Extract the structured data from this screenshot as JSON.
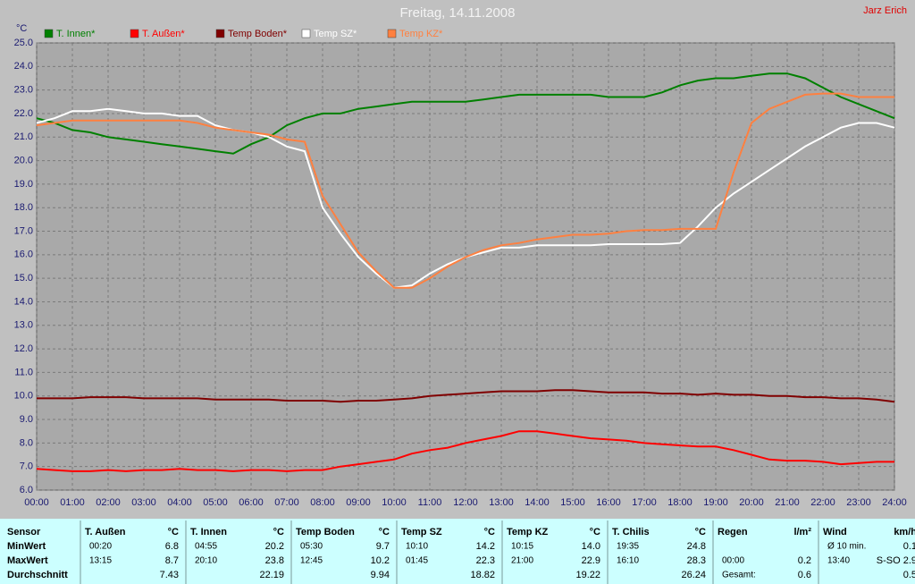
{
  "chart_data": {
    "type": "line",
    "title": "Freitag, 14.11.2008",
    "author": "Jarz Erich",
    "y_label": "°C",
    "x": [
      0,
      0.5,
      1,
      1.5,
      2,
      2.5,
      3,
      3.5,
      4,
      4.5,
      5,
      5.5,
      6,
      6.5,
      7,
      7.5,
      8,
      8.5,
      9,
      9.5,
      10,
      10.5,
      11,
      11.5,
      12,
      12.5,
      13,
      13.5,
      14,
      14.5,
      15,
      15.5,
      16,
      16.5,
      17,
      17.5,
      18,
      18.5,
      19,
      19.5,
      20,
      20.5,
      21,
      21.5,
      22,
      22.5,
      23,
      23.5,
      24
    ],
    "series": [
      {
        "name": "T. Innen*",
        "color": "#008000",
        "values": [
          21.8,
          21.6,
          21.3,
          21.2,
          21.0,
          20.9,
          20.8,
          20.7,
          20.6,
          20.5,
          20.4,
          20.3,
          20.7,
          21.0,
          21.5,
          21.8,
          22.0,
          22.0,
          22.2,
          22.3,
          22.4,
          22.5,
          22.5,
          22.5,
          22.5,
          22.6,
          22.7,
          22.8,
          22.8,
          22.8,
          22.8,
          22.8,
          22.7,
          22.7,
          22.7,
          22.9,
          23.2,
          23.4,
          23.5,
          23.5,
          23.6,
          23.7,
          23.7,
          23.5,
          23.1,
          22.7,
          22.4,
          22.1,
          21.8
        ]
      },
      {
        "name": "T. Außen*",
        "color": "#ff0000",
        "values": [
          6.9,
          6.85,
          6.8,
          6.8,
          6.85,
          6.8,
          6.85,
          6.85,
          6.9,
          6.85,
          6.85,
          6.8,
          6.85,
          6.85,
          6.8,
          6.85,
          6.85,
          7.0,
          7.1,
          7.2,
          7.3,
          7.55,
          7.7,
          7.8,
          8.0,
          8.15,
          8.3,
          8.5,
          8.5,
          8.4,
          8.3,
          8.2,
          8.15,
          8.1,
          8.0,
          7.95,
          7.9,
          7.85,
          7.85,
          7.7,
          7.5,
          7.3,
          7.25,
          7.25,
          7.2,
          7.1,
          7.15,
          7.2,
          7.2
        ]
      },
      {
        "name": "Temp Boden*",
        "color": "#800000",
        "values": [
          9.9,
          9.9,
          9.9,
          9.95,
          9.95,
          9.95,
          9.9,
          9.9,
          9.9,
          9.9,
          9.85,
          9.85,
          9.85,
          9.85,
          9.8,
          9.8,
          9.8,
          9.75,
          9.8,
          9.8,
          9.85,
          9.9,
          10.0,
          10.05,
          10.1,
          10.15,
          10.2,
          10.2,
          10.2,
          10.25,
          10.25,
          10.2,
          10.15,
          10.15,
          10.15,
          10.1,
          10.1,
          10.05,
          10.1,
          10.05,
          10.05,
          10.0,
          10.0,
          9.95,
          9.95,
          9.9,
          9.9,
          9.85,
          9.75
        ]
      },
      {
        "name": "Temp SZ*",
        "color": "#ffffff",
        "values": [
          21.6,
          21.8,
          22.1,
          22.1,
          22.2,
          22.1,
          22.0,
          22.0,
          21.9,
          21.9,
          21.5,
          21.3,
          21.2,
          21.0,
          20.6,
          20.4,
          18.0,
          16.9,
          15.9,
          15.2,
          14.6,
          14.7,
          15.2,
          15.6,
          15.9,
          16.1,
          16.3,
          16.3,
          16.4,
          16.4,
          16.4,
          16.4,
          16.45,
          16.45,
          16.45,
          16.45,
          16.5,
          17.2,
          18.0,
          18.6,
          19.1,
          19.6,
          20.1,
          20.6,
          21.0,
          21.4,
          21.6,
          21.6,
          21.4
        ]
      },
      {
        "name": "Temp KZ*",
        "color": "#ff8040",
        "values": [
          21.5,
          21.6,
          21.7,
          21.7,
          21.7,
          21.7,
          21.7,
          21.7,
          21.7,
          21.6,
          21.4,
          21.3,
          21.2,
          21.1,
          20.9,
          20.8,
          18.5,
          17.3,
          16.1,
          15.3,
          14.6,
          14.6,
          15.0,
          15.5,
          15.9,
          16.2,
          16.4,
          16.5,
          16.65,
          16.75,
          16.85,
          16.85,
          16.9,
          17.0,
          17.05,
          17.05,
          17.1,
          17.1,
          17.1,
          19.5,
          21.6,
          22.2,
          22.5,
          22.8,
          22.85,
          22.85,
          22.7,
          22.7,
          22.7
        ]
      }
    ],
    "xlim": [
      0,
      24
    ],
    "xticks": [
      {
        "value": 0,
        "label": "00:00"
      },
      {
        "value": 1,
        "label": "01:00"
      },
      {
        "value": 2,
        "label": "02:00"
      },
      {
        "value": 3,
        "label": "03:00"
      },
      {
        "value": 4,
        "label": "04:00"
      },
      {
        "value": 5,
        "label": "05:00"
      },
      {
        "value": 6,
        "label": "06:00"
      },
      {
        "value": 7,
        "label": "07:00"
      },
      {
        "value": 8,
        "label": "08:00"
      },
      {
        "value": 9,
        "label": "09:00"
      },
      {
        "value": 10,
        "label": "10:00"
      },
      {
        "value": 11,
        "label": "11:00"
      },
      {
        "value": 12,
        "label": "12:00"
      },
      {
        "value": 13,
        "label": "13:00"
      },
      {
        "value": 14,
        "label": "14:00"
      },
      {
        "value": 15,
        "label": "15:00"
      },
      {
        "value": 16,
        "label": "16:00"
      },
      {
        "value": 17,
        "label": "17:00"
      },
      {
        "value": 18,
        "label": "18:00"
      },
      {
        "value": 19,
        "label": "19:00"
      },
      {
        "value": 20,
        "label": "20:00"
      },
      {
        "value": 21,
        "label": "21:00"
      },
      {
        "value": 22,
        "label": "22:00"
      },
      {
        "value": 23,
        "label": "23:00"
      },
      {
        "value": 24,
        "label": "24:00"
      }
    ],
    "ylim": [
      6,
      25
    ],
    "yticks": [
      {
        "value": 6,
        "label": "6.0"
      },
      {
        "value": 7,
        "label": "7.0"
      },
      {
        "value": 8,
        "label": "8.0"
      },
      {
        "value": 9,
        "label": "9.0"
      },
      {
        "value": 10,
        "label": "10.0"
      },
      {
        "value": 11,
        "label": "11.0"
      },
      {
        "value": 12,
        "label": "12.0"
      },
      {
        "value": 13,
        "label": "13.0"
      },
      {
        "value": 14,
        "label": "14.0"
      },
      {
        "value": 15,
        "label": "15.0"
      },
      {
        "value": 16,
        "label": "16.0"
      },
      {
        "value": 17,
        "label": "17.0"
      },
      {
        "value": 18,
        "label": "18.0"
      },
      {
        "value": 19,
        "label": "19.0"
      },
      {
        "value": 20,
        "label": "20.0"
      },
      {
        "value": 21,
        "label": "21.0"
      },
      {
        "value": 22,
        "label": "22.0"
      },
      {
        "value": 23,
        "label": "23.0"
      },
      {
        "value": 24,
        "label": "24.0"
      },
      {
        "value": 25,
        "label": "25.0"
      }
    ],
    "grid": true
  },
  "table": {
    "header": "Sensor",
    "row_labels": [
      "MinWert",
      "MaxWert",
      "Durchschnitt"
    ],
    "groups": [
      {
        "name": "T. Außen",
        "unit": "°C",
        "cells": [
          [
            "00:20",
            "6.8"
          ],
          [
            "13:15",
            "8.7"
          ],
          [
            null,
            "7.43"
          ]
        ]
      },
      {
        "name": "T. Innen",
        "unit": "°C",
        "cells": [
          [
            "04:55",
            "20.2"
          ],
          [
            "20:10",
            "23.8"
          ],
          [
            null,
            "22.19"
          ]
        ]
      },
      {
        "name": "Temp Boden",
        "unit": "°C",
        "cells": [
          [
            "05:30",
            "9.7"
          ],
          [
            "12:45",
            "10.2"
          ],
          [
            null,
            "9.94"
          ]
        ]
      },
      {
        "name": "Temp SZ",
        "unit": "°C",
        "cells": [
          [
            "10:10",
            "14.2"
          ],
          [
            "01:45",
            "22.3"
          ],
          [
            null,
            "18.82"
          ]
        ]
      },
      {
        "name": "Temp KZ",
        "unit": "°C",
        "cells": [
          [
            "10:15",
            "14.0"
          ],
          [
            "21:00",
            "22.9"
          ],
          [
            null,
            "19.22"
          ]
        ]
      },
      {
        "name": "T. Chilis",
        "unit": "°C",
        "cells": [
          [
            "19:35",
            "24.8"
          ],
          [
            "16:10",
            "28.3"
          ],
          [
            null,
            "26.24"
          ]
        ]
      },
      {
        "name": "Regen",
        "unit": "l/m²",
        "cells": [
          [
            null,
            null
          ],
          [
            "00:00",
            "0.2"
          ],
          [
            "Gesamt:",
            "0.6"
          ]
        ]
      },
      {
        "name": "Wind",
        "unit": "km/h",
        "cells": [
          [
            "Ø 10 min.",
            "0.1"
          ],
          [
            "13:40",
            "S-SO 2.9"
          ],
          [
            null,
            "0.5"
          ]
        ]
      }
    ]
  }
}
